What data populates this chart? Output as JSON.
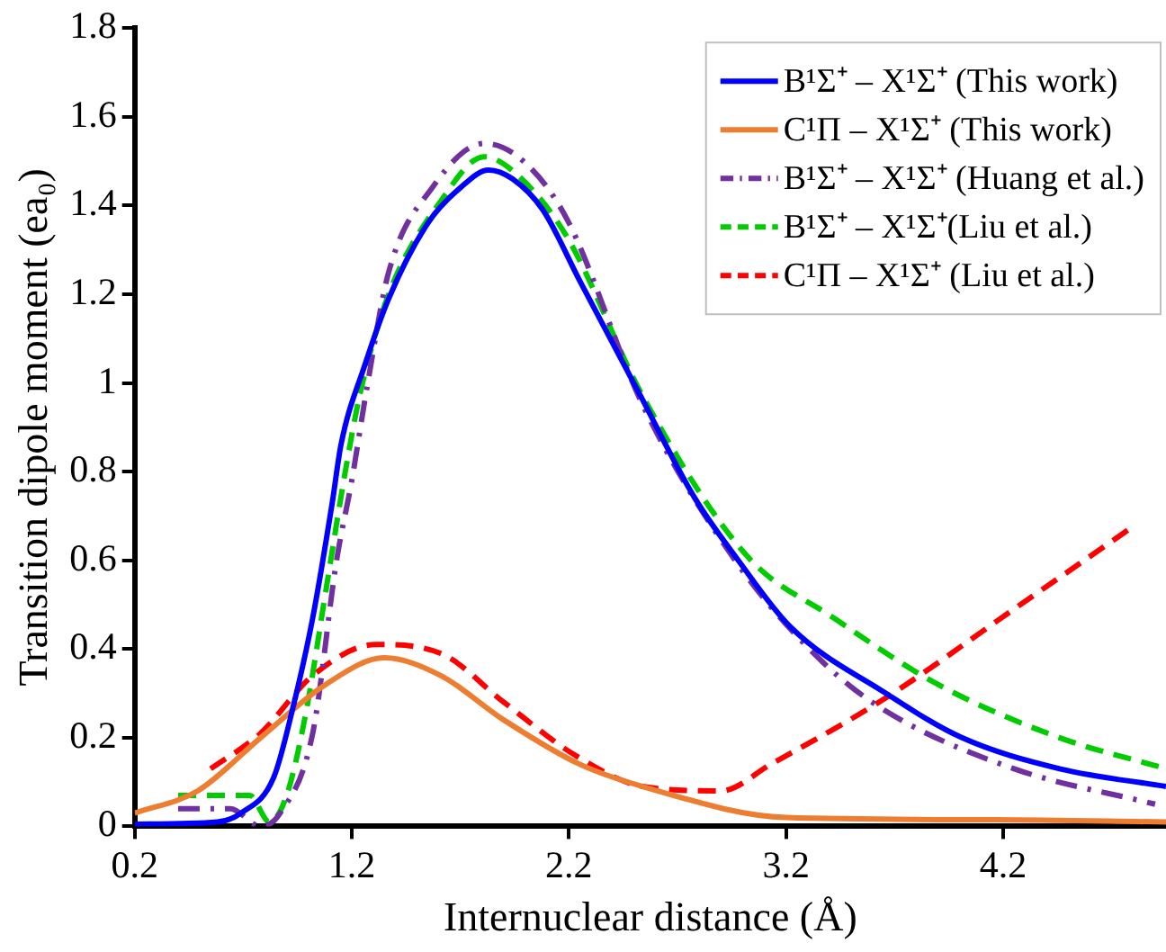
{
  "chart_data": {
    "type": "line",
    "xlabel": "Internuclear distance (Å)",
    "ylabel": "Transition dipole moment (ea₀)",
    "xlim": [
      0.2,
      4.95
    ],
    "xticks": [
      0.2,
      1.2,
      2.2,
      3.2,
      4.2
    ],
    "ylim": [
      0,
      1.8
    ],
    "yticks": [
      0,
      0.2,
      0.4,
      0.6,
      0.8,
      1,
      1.2,
      1.4,
      1.6,
      1.8
    ],
    "grid": false,
    "legend": "top right",
    "marker": "none",
    "series": [
      {
        "name": "B¹Σ⁺ – X¹Σ⁺ (This work)",
        "color": "#0000ff",
        "line_style": "solid",
        "x": [
          0.2,
          0.58,
          0.69,
          0.84,
          0.93,
          1.02,
          1.11,
          1.15,
          1.26,
          1.37,
          1.55,
          1.7,
          1.83,
          1.94,
          2.08,
          2.25,
          2.52,
          2.78,
          2.98,
          3.22,
          3.66,
          4.01,
          4.46,
          4.95
        ],
        "values": [
          0.005,
          0.01,
          0.03,
          0.11,
          0.27,
          0.47,
          0.73,
          0.86,
          1.04,
          1.19,
          1.36,
          1.44,
          1.48,
          1.46,
          1.39,
          1.23,
          0.98,
          0.74,
          0.6,
          0.45,
          0.3,
          0.2,
          0.13,
          0.09
        ]
      },
      {
        "name": "C¹Π – X¹Σ⁺ (This work)",
        "color": "#ed7d31",
        "line_style": "solid",
        "x": [
          0.2,
          0.49,
          0.78,
          1.08,
          1.35,
          1.61,
          1.9,
          2.25,
          2.54,
          3.2,
          4.16,
          4.95
        ],
        "values": [
          0.03,
          0.08,
          0.2,
          0.32,
          0.38,
          0.34,
          0.24,
          0.14,
          0.09,
          0.02,
          0.015,
          0.01
        ]
      },
      {
        "name": "B¹Σ⁺ – X¹Σ⁺ (Huang et al.)",
        "color": "#7030a0",
        "line_style": "dashdot",
        "x": [
          0.4,
          0.64,
          0.78,
          0.87,
          1.02,
          1.13,
          1.2,
          1.27,
          1.37,
          1.57,
          1.81,
          1.99,
          2.19,
          2.54,
          2.98,
          3.37,
          3.66,
          4.25,
          4.9
        ],
        "values": [
          0.04,
          0.04,
          0,
          0.03,
          0.21,
          0.6,
          0.78,
          0.99,
          1.25,
          1.44,
          1.54,
          1.5,
          1.37,
          0.95,
          0.59,
          0.37,
          0.26,
          0.13,
          0.05
        ]
      },
      {
        "name": "B¹Σ⁺ – X¹Σ⁺(Liu et al.)",
        "color": "#00cc00",
        "line_style": "dashed",
        "x": [
          0.4,
          0.73,
          0.82,
          0.9,
          0.99,
          1.08,
          1.17,
          1.24,
          1.37,
          1.61,
          1.81,
          1.96,
          2.19,
          2.54,
          3.02,
          3.42,
          3.9,
          4.46,
          4.95
        ],
        "values": [
          0.07,
          0.07,
          0.01,
          0.07,
          0.26,
          0.53,
          0.8,
          0.98,
          1.2,
          1.41,
          1.51,
          1.47,
          1.33,
          0.97,
          0.61,
          0.47,
          0.32,
          0.2,
          0.13
        ]
      },
      {
        "name": "C¹Π – X¹Σ⁺ (Liu et al.)",
        "color": "#ff0000",
        "line_style": "dashed",
        "x": [
          0.55,
          0.78,
          1.02,
          1.31,
          1.61,
          1.9,
          2.23,
          2.54,
          2.9,
          3.13,
          3.66,
          4.25,
          4.78
        ],
        "values": [
          0.13,
          0.21,
          0.34,
          0.41,
          0.39,
          0.28,
          0.16,
          0.09,
          0.08,
          0.14,
          0.29,
          0.49,
          0.67
        ]
      }
    ]
  }
}
